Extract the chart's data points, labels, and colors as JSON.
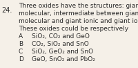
{
  "question_num": "24.",
  "question_text_lines": [
    "Three oxides have the structures: giant",
    "molecular, intermediate between giant",
    "molecular and giant ionic and giant ionic.",
    "These oxides could be respectively"
  ],
  "options": [
    {
      "label": "A",
      "text": "SiO₂, CO₂ and GeO"
    },
    {
      "label": "B",
      "text": "CO₂, SiO₂ and SnO"
    },
    {
      "label": "C",
      "text": "SiO₂, GeO₂ and SnO"
    },
    {
      "label": "D",
      "text": "GeO, SnO₂ and PbO₂"
    }
  ],
  "bg_color": "#f5f0e8",
  "text_color": "#2a2a2a",
  "font_size_question": 6.5,
  "font_size_options": 6.5,
  "qnum_font_size": 7.0
}
